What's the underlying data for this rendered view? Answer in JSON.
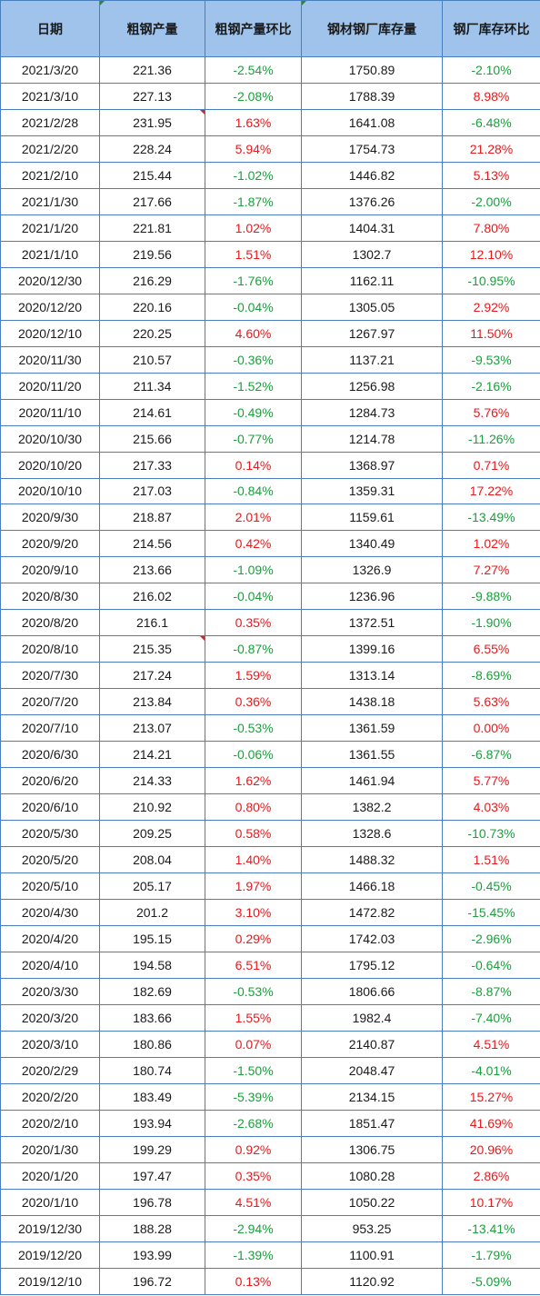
{
  "table": {
    "headers": [
      "日期",
      "粗钢产量",
      "粗钢产量环比",
      "钢材钢厂库存量",
      "钢厂库存环比"
    ],
    "rows": [
      [
        "2021/3/20",
        "221.36",
        "-2.54%",
        "1750.89",
        "-2.10%"
      ],
      [
        "2021/3/10",
        "227.13",
        "-2.08%",
        "1788.39",
        "8.98%"
      ],
      [
        "2021/2/28",
        "231.95",
        "1.63%",
        "1641.08",
        "-6.48%"
      ],
      [
        "2021/2/20",
        "228.24",
        "5.94%",
        "1754.73",
        "21.28%"
      ],
      [
        "2021/2/10",
        "215.44",
        "-1.02%",
        "1446.82",
        "5.13%"
      ],
      [
        "2021/1/30",
        "217.66",
        "-1.87%",
        "1376.26",
        "-2.00%"
      ],
      [
        "2021/1/20",
        "221.81",
        "1.02%",
        "1404.31",
        "7.80%"
      ],
      [
        "2021/1/10",
        "219.56",
        "1.51%",
        "1302.7",
        "12.10%"
      ],
      [
        "2020/12/30",
        "216.29",
        "-1.76%",
        "1162.11",
        "-10.95%"
      ],
      [
        "2020/12/20",
        "220.16",
        "-0.04%",
        "1305.05",
        "2.92%"
      ],
      [
        "2020/12/10",
        "220.25",
        "4.60%",
        "1267.97",
        "11.50%"
      ],
      [
        "2020/11/30",
        "210.57",
        "-0.36%",
        "1137.21",
        "-9.53%"
      ],
      [
        "2020/11/20",
        "211.34",
        "-1.52%",
        "1256.98",
        "-2.16%"
      ],
      [
        "2020/11/10",
        "214.61",
        "-0.49%",
        "1284.73",
        "5.76%"
      ],
      [
        "2020/10/30",
        "215.66",
        "-0.77%",
        "1214.78",
        "-11.26%"
      ],
      [
        "2020/10/20",
        "217.33",
        "0.14%",
        "1368.97",
        "0.71%"
      ],
      [
        "2020/10/10",
        "217.03",
        "-0.84%",
        "1359.31",
        "17.22%"
      ],
      [
        "2020/9/30",
        "218.87",
        "2.01%",
        "1159.61",
        "-13.49%"
      ],
      [
        "2020/9/20",
        "214.56",
        "0.42%",
        "1340.49",
        "1.02%"
      ],
      [
        "2020/9/10",
        "213.66",
        "-1.09%",
        "1326.9",
        "7.27%"
      ],
      [
        "2020/8/30",
        "216.02",
        "-0.04%",
        "1236.96",
        "-9.88%"
      ],
      [
        "2020/8/20",
        "216.1",
        "0.35%",
        "1372.51",
        "-1.90%"
      ],
      [
        "2020/8/10",
        "215.35",
        "-0.87%",
        "1399.16",
        "6.55%"
      ],
      [
        "2020/7/30",
        "217.24",
        "1.59%",
        "1313.14",
        "-8.69%"
      ],
      [
        "2020/7/20",
        "213.84",
        "0.36%",
        "1438.18",
        "5.63%"
      ],
      [
        "2020/7/10",
        "213.07",
        "-0.53%",
        "1361.59",
        "0.00%"
      ],
      [
        "2020/6/30",
        "214.21",
        "-0.06%",
        "1361.55",
        "-6.87%"
      ],
      [
        "2020/6/20",
        "214.33",
        "1.62%",
        "1461.94",
        "5.77%"
      ],
      [
        "2020/6/10",
        "210.92",
        "0.80%",
        "1382.2",
        "4.03%"
      ],
      [
        "2020/5/30",
        "209.25",
        "0.58%",
        "1328.6",
        "-10.73%"
      ],
      [
        "2020/5/20",
        "208.04",
        "1.40%",
        "1488.32",
        "1.51%"
      ],
      [
        "2020/5/10",
        "205.17",
        "1.97%",
        "1466.18",
        "-0.45%"
      ],
      [
        "2020/4/30",
        "201.2",
        "3.10%",
        "1472.82",
        "-15.45%"
      ],
      [
        "2020/4/20",
        "195.15",
        "0.29%",
        "1742.03",
        "-2.96%"
      ],
      [
        "2020/4/10",
        "194.58",
        "6.51%",
        "1795.12",
        "-0.64%"
      ],
      [
        "2020/3/30",
        "182.69",
        "-0.53%",
        "1806.66",
        "-8.87%"
      ],
      [
        "2020/3/20",
        "183.66",
        "1.55%",
        "1982.4",
        "-7.40%"
      ],
      [
        "2020/3/10",
        "180.86",
        "0.07%",
        "2140.87",
        "4.51%"
      ],
      [
        "2020/2/29",
        "180.74",
        "-1.50%",
        "2048.47",
        "-4.01%"
      ],
      [
        "2020/2/20",
        "183.49",
        "-5.39%",
        "2134.15",
        "15.27%"
      ],
      [
        "2020/2/10",
        "193.94",
        "-2.68%",
        "1851.47",
        "41.69%"
      ],
      [
        "2020/1/30",
        "199.29",
        "0.92%",
        "1306.75",
        "20.96%"
      ],
      [
        "2020/1/20",
        "197.47",
        "0.35%",
        "1080.28",
        "2.86%"
      ],
      [
        "2020/1/10",
        "196.78",
        "4.51%",
        "1050.22",
        "10.17%"
      ],
      [
        "2019/12/30",
        "188.28",
        "-2.94%",
        "953.25",
        "-13.41%"
      ],
      [
        "2019/12/20",
        "193.99",
        "-1.39%",
        "1100.91",
        "-1.79%"
      ],
      [
        "2019/12/10",
        "196.72",
        "0.13%",
        "1120.92",
        "-5.09%"
      ]
    ]
  },
  "colors": {
    "header_bg": "#9fc3ea",
    "border": "#4a7fbf",
    "negative": "#1aa03c",
    "positive": "#e8191c"
  }
}
